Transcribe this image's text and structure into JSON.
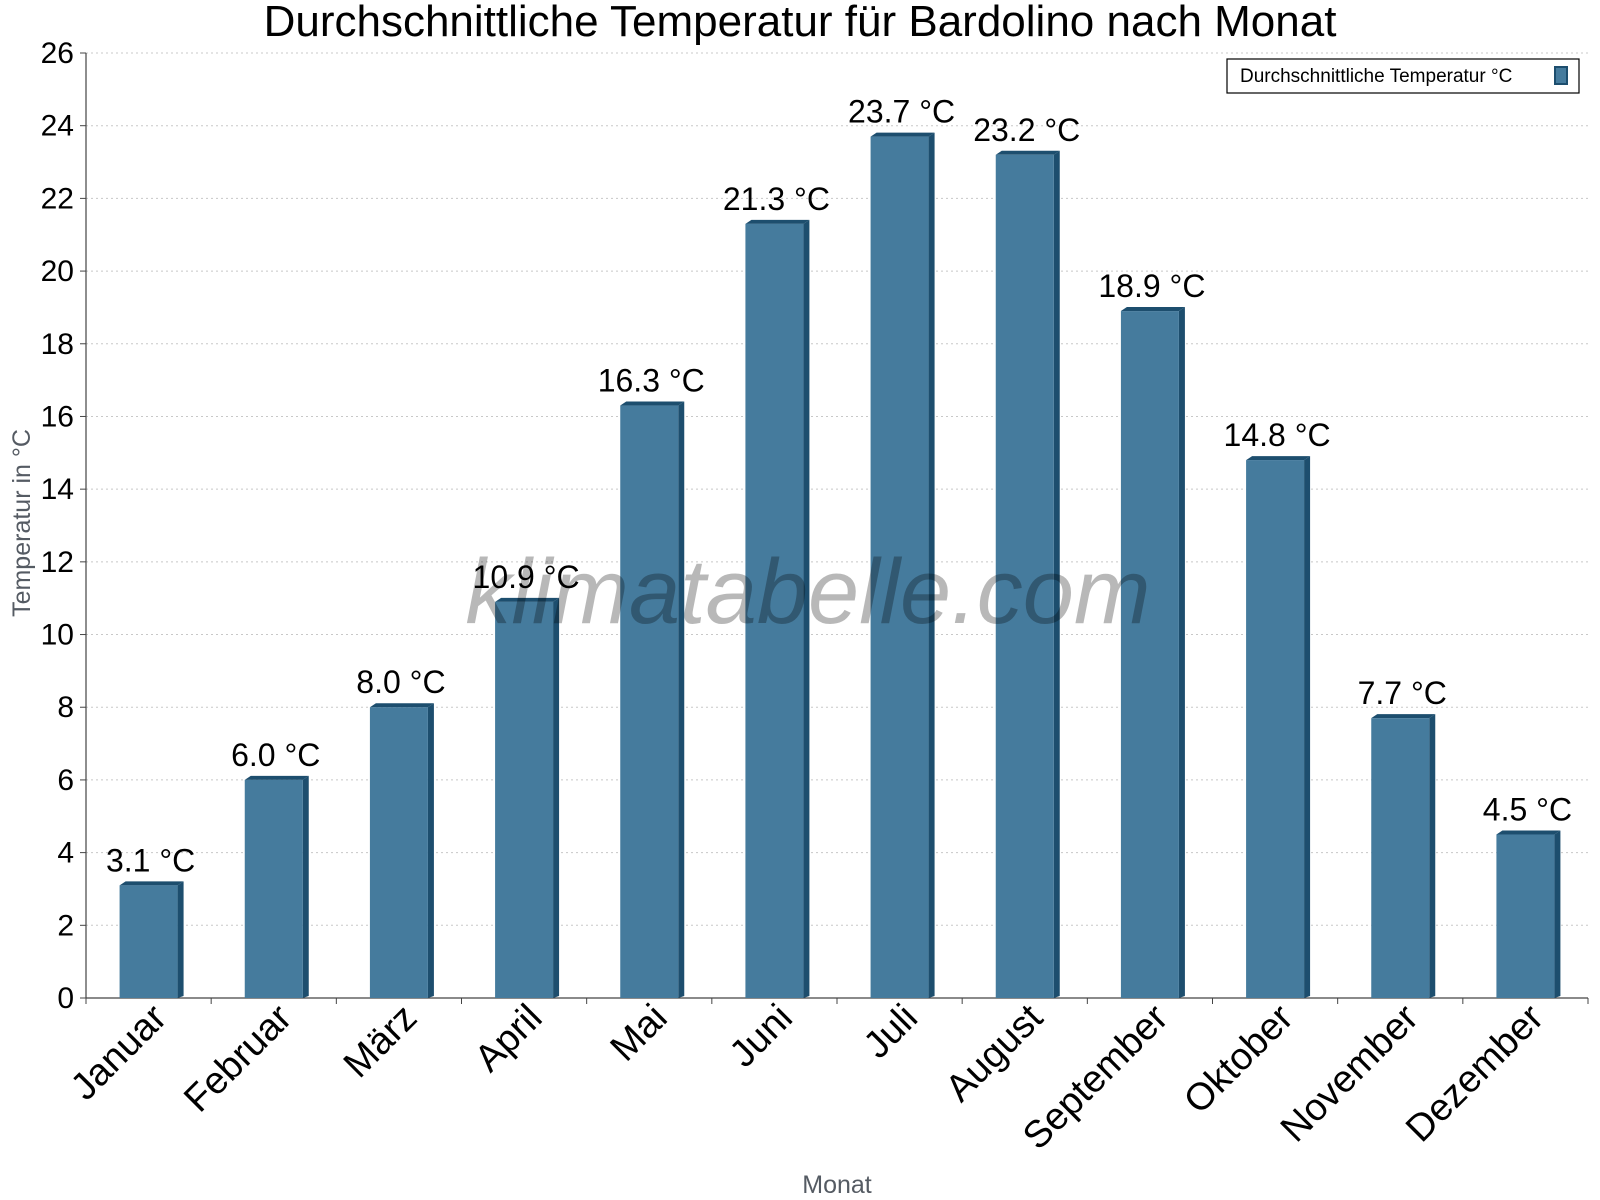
{
  "chart_data": {
    "type": "bar",
    "title": "Durchschnittliche Temperatur für Bardolino nach Monat",
    "xlabel": "Monat",
    "ylabel": "Temperatur in °C",
    "ylim": [
      0,
      26
    ],
    "yticks": [
      0,
      2,
      4,
      6,
      8,
      10,
      12,
      14,
      16,
      18,
      20,
      22,
      24,
      26
    ],
    "grid": true,
    "legend_position": "top-right",
    "categories": [
      "Januar",
      "Februar",
      "März",
      "April",
      "Mai",
      "Juni",
      "Juli",
      "August",
      "September",
      "Oktober",
      "November",
      "Dezember"
    ],
    "series": [
      {
        "name": "Durchschnittliche Temperatur °C",
        "values": [
          3.1,
          6.0,
          8.0,
          10.9,
          16.3,
          21.3,
          23.7,
          23.2,
          18.9,
          14.8,
          7.7,
          4.5
        ],
        "labels": [
          "3.1 °C",
          "6.0 °C",
          "8.0 °C",
          "10.9 °C",
          "16.3 °C",
          "21.3 °C",
          "23.7 °C",
          "23.2 °C",
          "18.9 °C",
          "14.8 °C",
          "7.7 °C",
          "4.5 °C"
        ],
        "color": "#457b9d",
        "shade_color": "#1d4e6e"
      }
    ],
    "watermark": "klimatabelle.com"
  }
}
